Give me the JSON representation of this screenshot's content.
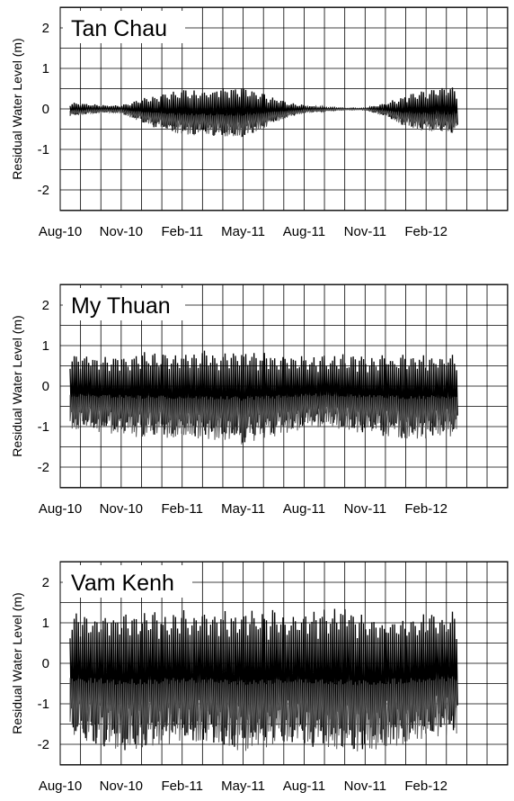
{
  "chart_data": [
    {
      "type": "line",
      "title": "Tan Chau",
      "ylabel": "Residual Water Level (m)",
      "xlabel": "",
      "ylim": [
        -2.5,
        2.5
      ],
      "yticks": [
        "2",
        "1",
        "0",
        "-1",
        "-2"
      ],
      "xticks": [
        "Aug-10",
        "Nov-10",
        "Feb-11",
        "May-11",
        "Aug-11",
        "Nov-11",
        "Feb-12"
      ],
      "grid": true,
      "series": [
        {
          "x": [
            "Aug-10",
            "Sep-10",
            "Oct-10",
            "Nov-10",
            "Dec-10",
            "Jan-11",
            "Feb-11",
            "Mar-11",
            "Apr-11",
            "May-11",
            "Jun-11",
            "Jul-11",
            "Aug-11",
            "Sep-11",
            "Oct-11",
            "Nov-11",
            "Dec-11",
            "Jan-12",
            "Feb-12",
            "Mar-12"
          ],
          "upper": [
            0.2,
            0.15,
            0.1,
            0.1,
            0.25,
            0.4,
            0.5,
            0.5,
            0.55,
            0.55,
            0.4,
            0.2,
            0.1,
            0.05,
            0.02,
            0.02,
            0.15,
            0.35,
            0.5,
            0.55
          ],
          "lower": [
            -0.2,
            -0.15,
            -0.1,
            -0.1,
            -0.35,
            -0.55,
            -0.65,
            -0.65,
            -0.7,
            -0.7,
            -0.5,
            -0.25,
            -0.1,
            -0.05,
            -0.02,
            -0.02,
            -0.2,
            -0.45,
            -0.55,
            -0.6
          ]
        }
      ]
    },
    {
      "type": "line",
      "title": "My Thuan",
      "ylabel": "Residual Water Level (m)",
      "xlabel": "",
      "ylim": [
        -2.5,
        2.5
      ],
      "yticks": [
        "2",
        "1",
        "0",
        "-1",
        "-2"
      ],
      "xticks": [
        "Aug-10",
        "Nov-10",
        "Feb-11",
        "May-11",
        "Aug-11",
        "Nov-11",
        "Feb-12"
      ],
      "grid": true,
      "series": [
        {
          "x": [
            "Aug-10",
            "Sep-10",
            "Oct-10",
            "Nov-10",
            "Dec-10",
            "Jan-11",
            "Feb-11",
            "Mar-11",
            "Apr-11",
            "May-11",
            "Jun-11",
            "Jul-11",
            "Aug-11",
            "Sep-11",
            "Oct-11",
            "Nov-11",
            "Dec-11",
            "Jan-12",
            "Feb-12",
            "Mar-12"
          ],
          "upper": [
            0.85,
            0.8,
            0.8,
            0.8,
            0.85,
            0.85,
            0.85,
            0.9,
            0.9,
            0.9,
            0.85,
            0.85,
            0.8,
            0.8,
            0.8,
            0.8,
            0.8,
            0.8,
            0.8,
            0.8
          ],
          "lower": [
            -1.0,
            -1.1,
            -1.2,
            -1.2,
            -1.3,
            -1.3,
            -1.3,
            -1.35,
            -1.4,
            -1.45,
            -1.3,
            -1.2,
            -1.1,
            -1.0,
            -1.1,
            -1.2,
            -1.3,
            -1.3,
            -1.3,
            -1.25
          ]
        }
      ]
    },
    {
      "type": "line",
      "title": "Vam Kenh",
      "ylabel": "Residual Water Level (m)",
      "xlabel": "",
      "ylim": [
        -2.5,
        2.5
      ],
      "yticks": [
        "2",
        "1",
        "0",
        "-1",
        "-2"
      ],
      "xticks": [
        "Aug-10",
        "Nov-10",
        "Feb-11",
        "May-11",
        "Aug-11",
        "Nov-11",
        "Feb-12"
      ],
      "grid": true,
      "series": [
        {
          "x": [
            "Aug-10",
            "Sep-10",
            "Oct-10",
            "Nov-10",
            "Dec-10",
            "Jan-11",
            "Feb-11",
            "Mar-11",
            "Apr-11",
            "May-11",
            "Jun-11",
            "Jul-11",
            "Aug-11",
            "Sep-11",
            "Oct-11",
            "Nov-11",
            "Dec-11",
            "Jan-12",
            "Feb-12",
            "Mar-12"
          ],
          "upper": [
            1.3,
            1.35,
            1.3,
            1.3,
            1.3,
            1.3,
            1.35,
            1.3,
            1.35,
            1.4,
            1.4,
            1.3,
            1.35,
            1.4,
            1.5,
            1.3,
            1.2,
            1.25,
            1.3,
            1.3
          ],
          "lower": [
            -1.9,
            -2.0,
            -2.1,
            -2.2,
            -2.1,
            -2.0,
            -2.1,
            -2.0,
            -2.1,
            -2.2,
            -2.1,
            -2.0,
            -2.1,
            -2.1,
            -2.2,
            -2.3,
            -2.1,
            -2.0,
            -1.9,
            -1.8
          ]
        }
      ]
    }
  ]
}
